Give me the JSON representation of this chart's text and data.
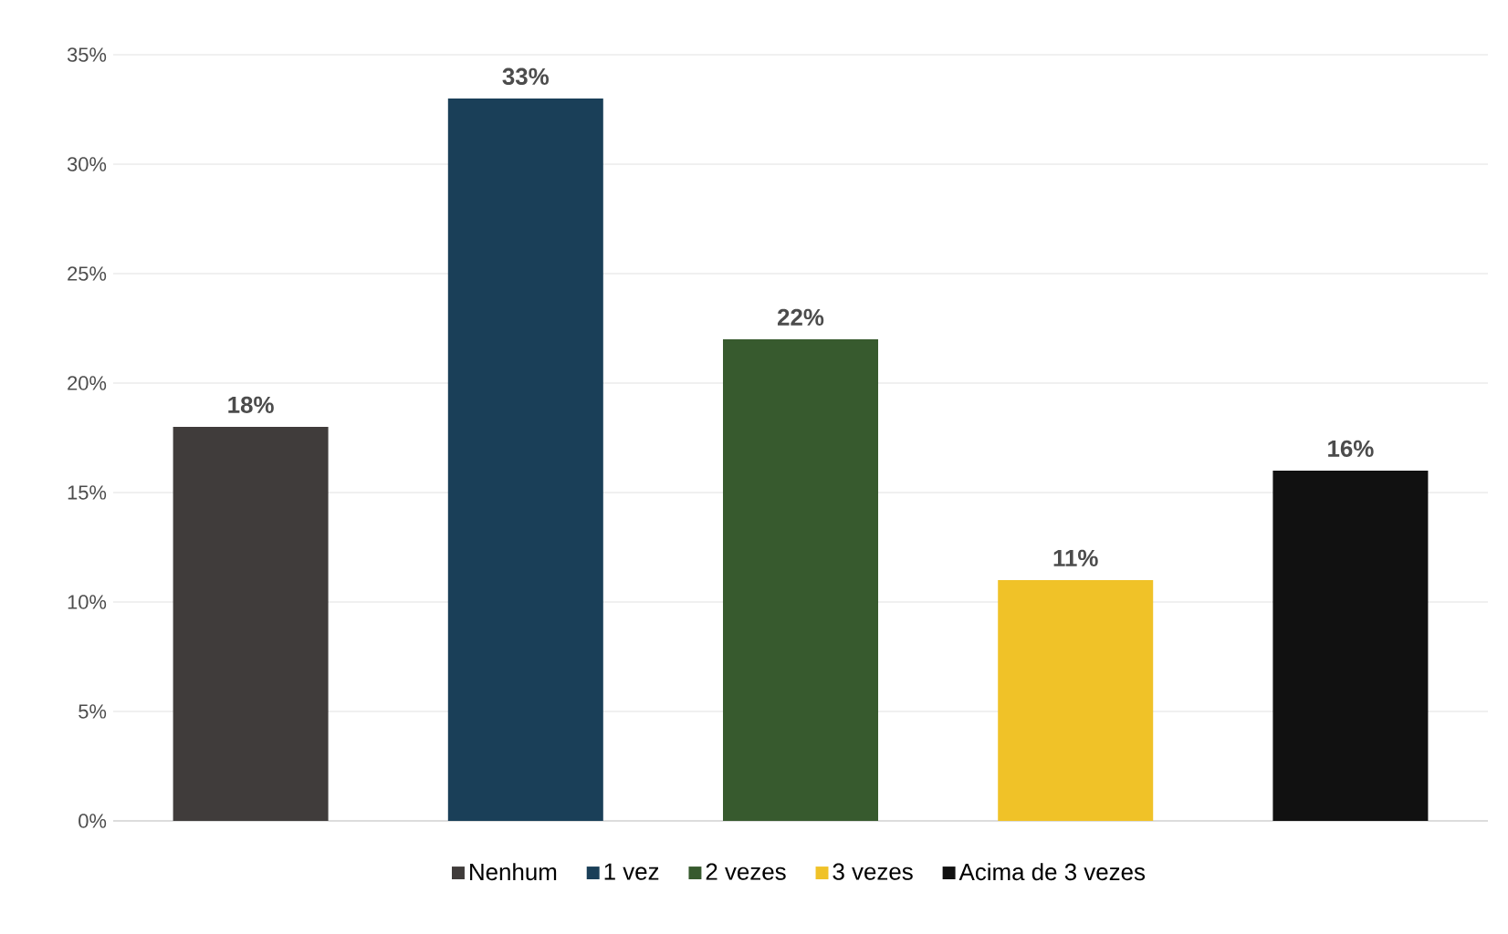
{
  "chart_data": {
    "type": "bar",
    "categories": [
      null,
      null,
      null,
      null,
      null
    ],
    "series": [
      {
        "name": "Nenhum",
        "color": "#403c3b",
        "values": [
          18,
          null,
          null,
          null,
          null
        ],
        "value_labels": [
          "18%",
          null,
          null,
          null,
          null
        ]
      },
      {
        "name": "1 vez",
        "color": "#1a3f58",
        "values": [
          null,
          33,
          null,
          null,
          null
        ],
        "value_labels": [
          null,
          "33%",
          null,
          null,
          null
        ]
      },
      {
        "name": "2 vezes",
        "color": "#375a2e",
        "values": [
          null,
          null,
          22,
          null,
          null
        ],
        "value_labels": [
          null,
          null,
          "22%",
          null,
          null
        ]
      },
      {
        "name": "3 vezes",
        "color": "#f0c228",
        "values": [
          null,
          null,
          null,
          11,
          null
        ],
        "value_labels": [
          null,
          null,
          null,
          "11%",
          null
        ]
      },
      {
        "name": "Acima de 3 vezes",
        "color": "#111111",
        "values": [
          null,
          null,
          null,
          null,
          16
        ],
        "value_labels": [
          null,
          null,
          null,
          null,
          "16%"
        ]
      }
    ],
    "ylim": [
      0,
      35
    ],
    "yticks": [
      {
        "value": 0,
        "label": "0%"
      },
      {
        "value": 5,
        "label": "5%"
      },
      {
        "value": 10,
        "label": "10%"
      },
      {
        "value": 15,
        "label": "15%"
      },
      {
        "value": 20,
        "label": "20%"
      },
      {
        "value": 25,
        "label": "25%"
      },
      {
        "value": 30,
        "label": "30%"
      },
      {
        "value": 35,
        "label": "35%"
      }
    ],
    "grid": "y",
    "legend": "bottom"
  }
}
